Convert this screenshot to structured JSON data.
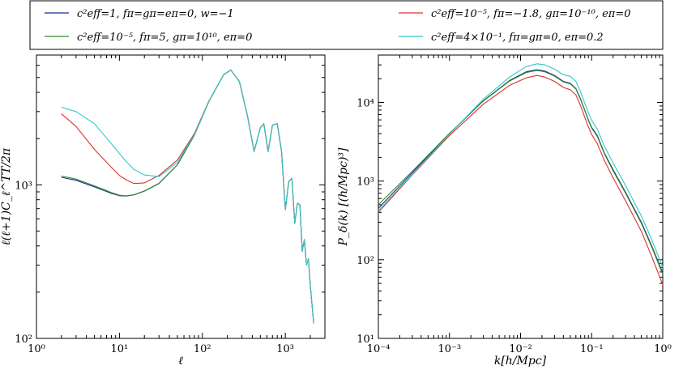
{
  "legend": [
    {
      "label": "c²eff=1, fπ=gπ=eπ=0, w=−1",
      "color": "#1f2f8f"
    },
    {
      "label": "c²eff=10⁻⁵, fπ=5, gπ=10¹⁰, eπ=0",
      "color": "#2e8b2e"
    },
    {
      "label": "c²eff=10⁻⁵, fπ=−1.8, gπ=10⁻¹⁰, eπ=0",
      "color": "#e03030"
    },
    {
      "label": "c²eff=4×10⁻¹, fπ=gπ=0, eπ=0.2",
      "color": "#30c8c8"
    }
  ],
  "chart_data": [
    {
      "type": "line",
      "title": "",
      "xlabel": "ℓ",
      "ylabel": "ℓ(ℓ+1)C_ℓ^TT/2π",
      "xscale": "log",
      "yscale": "log",
      "xlim": [
        1,
        3000
      ],
      "ylim": [
        100,
        7000
      ],
      "xticks": [
        "10⁰",
        "10¹",
        "10²",
        "10³"
      ],
      "yticks": [
        "10²",
        "10³"
      ],
      "x": [
        2,
        3,
        5,
        8,
        10,
        12,
        15,
        20,
        30,
        50,
        80,
        120,
        180,
        220,
        280,
        350,
        420,
        500,
        550,
        620,
        700,
        800,
        900,
        1000,
        1100,
        1200,
        1300,
        1400,
        1500,
        1600,
        1700,
        1800,
        1900,
        2000,
        2200
      ],
      "series": [
        {
          "name": "c²eff=1, fπ=gπ=eπ=0, w=−1",
          "values": [
            1120,
            1070,
            970,
            880,
            850,
            845,
            860,
            910,
            1020,
            1350,
            2100,
            3500,
            5200,
            5600,
            4700,
            2800,
            1650,
            2350,
            2500,
            1650,
            2450,
            2500,
            1650,
            690,
            1050,
            1100,
            560,
            760,
            740,
            370,
            440,
            300,
            330,
            220,
            125
          ]
        },
        {
          "name": "c²eff=10⁻⁵, fπ=5, gπ=10¹⁰, eπ=0",
          "values": [
            1140,
            1090,
            985,
            890,
            855,
            848,
            862,
            912,
            1022,
            1350,
            2100,
            3500,
            5200,
            5600,
            4700,
            2800,
            1650,
            2350,
            2500,
            1650,
            2450,
            2500,
            1650,
            690,
            1050,
            1100,
            560,
            760,
            740,
            370,
            440,
            300,
            330,
            220,
            125
          ]
        },
        {
          "name": "c²eff=10⁻⁵, fπ=−1.8, gπ=10⁻¹⁰, eπ=0",
          "values": [
            2900,
            2400,
            1700,
            1300,
            1150,
            1080,
            1020,
            1030,
            1150,
            1450,
            2150,
            3520,
            5200,
            5600,
            4700,
            2800,
            1650,
            2350,
            2500,
            1650,
            2450,
            2500,
            1650,
            690,
            1050,
            1100,
            560,
            760,
            740,
            370,
            440,
            300,
            330,
            220,
            125
          ]
        },
        {
          "name": "c²eff=4×10⁻¹, fπ=gπ=0, eπ=0.2",
          "values": [
            3200,
            3000,
            2500,
            1850,
            1600,
            1420,
            1260,
            1160,
            1130,
            1400,
            2120,
            3500,
            5200,
            5600,
            4700,
            2800,
            1650,
            2350,
            2500,
            1650,
            2450,
            2500,
            1650,
            690,
            1050,
            1100,
            560,
            760,
            740,
            370,
            440,
            300,
            330,
            220,
            125
          ]
        }
      ]
    },
    {
      "type": "line",
      "title": "",
      "xlabel": "k[h/Mpc]",
      "ylabel": "P_δ(k)   [(h/Mpc)³]",
      "xscale": "log",
      "yscale": "log",
      "xlim": [
        0.0001,
        1
      ],
      "ylim": [
        10,
        40000
      ],
      "xticks": [
        "10⁻⁴",
        "10⁻³",
        "10⁻²",
        "10⁻¹",
        "10⁰"
      ],
      "yticks": [
        "10¹",
        "10²",
        "10³",
        "10⁴"
      ],
      "x": [
        0.0001,
        0.0003,
        0.001,
        0.003,
        0.007,
        0.012,
        0.017,
        0.022,
        0.03,
        0.04,
        0.05,
        0.06,
        0.07,
        0.08,
        0.09,
        0.1,
        0.12,
        0.15,
        0.2,
        0.3,
        0.5,
        0.7,
        1.0
      ],
      "series": [
        {
          "name": "c²eff=1, fπ=gπ=eπ=0, w=−1",
          "values": [
            450,
            1280,
            4000,
            10500,
            19000,
            24500,
            26000,
            25000,
            22000,
            18500,
            17500,
            15000,
            11000,
            8000,
            6000,
            4800,
            3800,
            2300,
            1400,
            720,
            300,
            150,
            68
          ]
        },
        {
          "name": "c²eff=10⁻⁵, fπ=5, gπ=10¹⁰, eπ=0",
          "values": [
            500,
            1330,
            4050,
            10400,
            18700,
            24000,
            25500,
            24500,
            21600,
            18200,
            17200,
            14800,
            10800,
            7900,
            5900,
            4700,
            3700,
            2250,
            1350,
            700,
            290,
            145,
            65
          ]
        },
        {
          "name": "c²eff=10⁻⁵, fπ=−1.8, gπ=10⁻¹⁰, eπ=0",
          "values": [
            400,
            1200,
            3800,
            9500,
            16500,
            20500,
            22000,
            21000,
            18500,
            15500,
            14500,
            12500,
            9000,
            6500,
            4900,
            3900,
            3000,
            1850,
            1100,
            560,
            230,
            110,
            48
          ]
        },
        {
          "name": "c²eff=4×10⁻¹, fπ=gπ=0, eπ=0.2",
          "values": [
            420,
            1220,
            3950,
            11000,
            21000,
            28500,
            31000,
            30000,
            26500,
            22500,
            21500,
            18500,
            13500,
            9800,
            7400,
            5900,
            4600,
            2800,
            1700,
            880,
            360,
            180,
            80
          ]
        }
      ]
    }
  ]
}
